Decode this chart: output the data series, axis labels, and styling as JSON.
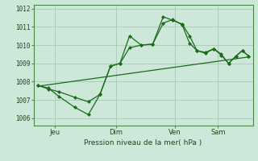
{
  "bg_color": "#cde8d8",
  "grid_color": "#a8c8b8",
  "line_color": "#1a6b1a",
  "title": "Pression niveau de la mer( hPa )",
  "ylabel_ticks": [
    1006,
    1007,
    1008,
    1009,
    1010,
    1011,
    1012
  ],
  "xtick_labels": [
    "Jeu",
    "Dim",
    "Ven",
    "Sam"
  ],
  "xtick_positions": [
    0.08,
    0.37,
    0.65,
    0.855
  ],
  "line1_x": [
    0.0,
    0.05,
    0.1,
    0.175,
    0.24,
    0.295,
    0.345,
    0.39,
    0.435,
    0.49,
    0.545,
    0.595,
    0.64,
    0.685,
    0.72,
    0.755,
    0.795,
    0.835,
    0.87,
    0.905,
    0.94,
    0.97,
    1.0
  ],
  "line1_y": [
    1007.8,
    1007.65,
    1007.2,
    1006.6,
    1006.2,
    1007.3,
    1008.85,
    1009.0,
    1010.5,
    1010.0,
    1010.05,
    1011.55,
    1011.35,
    1011.15,
    1010.5,
    1009.7,
    1009.6,
    1009.8,
    1009.5,
    1009.0,
    1009.4,
    1009.7,
    1009.4
  ],
  "line2_x": [
    0.0,
    0.05,
    0.1,
    0.175,
    0.24,
    0.295,
    0.345,
    0.39,
    0.435,
    0.49,
    0.545,
    0.595,
    0.64,
    0.685,
    0.72,
    0.755,
    0.795,
    0.835,
    0.87,
    0.905,
    0.94,
    0.97,
    1.0
  ],
  "line2_y": [
    1007.8,
    1007.6,
    1007.45,
    1007.15,
    1006.9,
    1007.3,
    1008.85,
    1009.0,
    1009.85,
    1010.0,
    1010.05,
    1011.2,
    1011.4,
    1011.1,
    1010.1,
    1009.7,
    1009.55,
    1009.8,
    1009.45,
    1009.0,
    1009.4,
    1009.7,
    1009.4
  ],
  "trend_x": [
    0.0,
    1.0
  ],
  "trend_y": [
    1007.75,
    1009.35
  ],
  "ylim": [
    1005.6,
    1012.2
  ],
  "xlim": [
    -0.02,
    1.02
  ]
}
